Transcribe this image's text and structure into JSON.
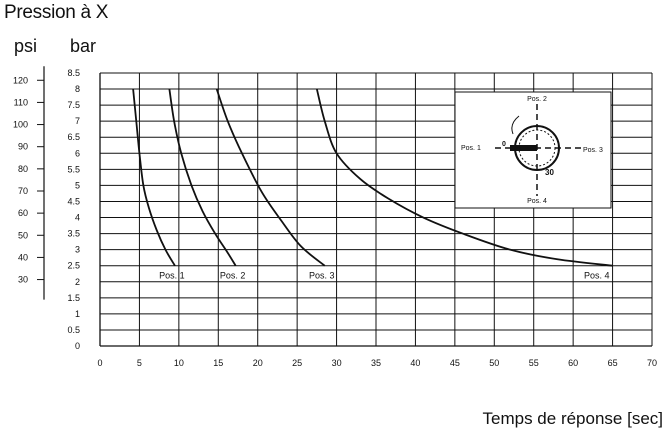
{
  "chart_data": {
    "type": "line",
    "title": "Pression à X",
    "left_axis_unit": "psi",
    "right_axis_unit": "bar",
    "xlabel": "Temps de réponse [sec]",
    "xlim": [
      0,
      70
    ],
    "ylim": [
      0,
      8.5
    ],
    "x_ticks": [
      0,
      5,
      10,
      15,
      20,
      25,
      30,
      35,
      40,
      45,
      50,
      55,
      60,
      65,
      70
    ],
    "y_ticks_bar": [
      0,
      0.5,
      1,
      1.5,
      2,
      2.5,
      3,
      3.5,
      4,
      4.5,
      5,
      5.5,
      6,
      6.5,
      7,
      7.5,
      8,
      8.5
    ],
    "y_ticks_psi": [
      30,
      40,
      50,
      60,
      70,
      80,
      90,
      100,
      110,
      120
    ],
    "grid": true,
    "series": [
      {
        "name": "Pos. 1",
        "x": [
          4.2,
          4.6,
          5.0,
          5.5,
          6.2,
          7.2,
          8.3,
          9.5
        ],
        "y": [
          8.0,
          7.0,
          6.0,
          5.0,
          4.3,
          3.6,
          3.0,
          2.5
        ]
      },
      {
        "name": "Pos. 2",
        "x": [
          8.8,
          9.4,
          10.3,
          11.6,
          13.0,
          14.6,
          16.2,
          17.2
        ],
        "y": [
          8.0,
          7.0,
          6.0,
          5.0,
          4.2,
          3.5,
          2.9,
          2.5
        ]
      },
      {
        "name": "Pos. 3",
        "x": [
          14.8,
          16.2,
          18.0,
          20.5,
          23.0,
          25.5,
          28.5
        ],
        "y": [
          8.0,
          7.0,
          6.0,
          4.8,
          3.9,
          3.1,
          2.5
        ]
      },
      {
        "name": "Pos. 4",
        "x": [
          27.5,
          28.5,
          30.0,
          33.0,
          36.5,
          41.0,
          46.0,
          52.0,
          58.0,
          65.0
        ],
        "y": [
          8.0,
          7.0,
          6.0,
          5.2,
          4.6,
          4.0,
          3.5,
          3.0,
          2.7,
          2.5
        ]
      }
    ],
    "inset": {
      "labels": [
        "Pos. 1",
        "Pos. 2",
        "Pos. 3",
        "Pos. 4"
      ],
      "dial_labels": [
        "0",
        "30"
      ]
    }
  }
}
